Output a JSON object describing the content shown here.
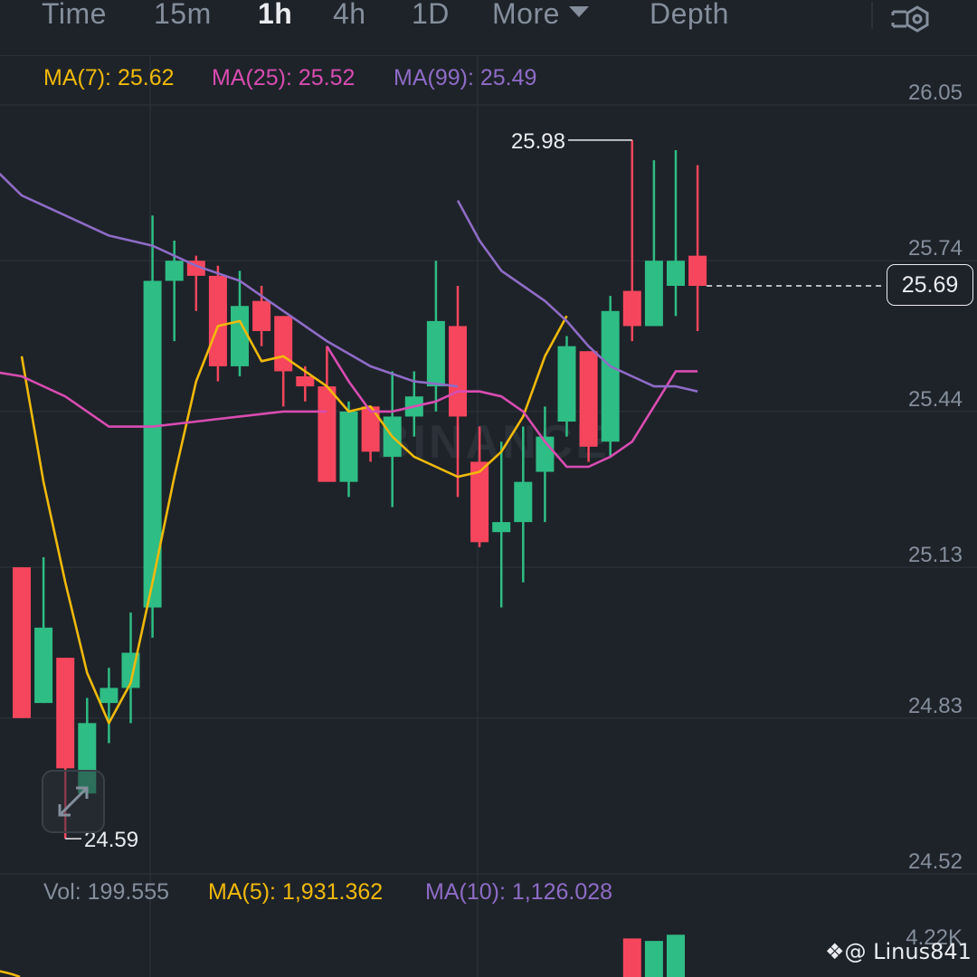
{
  "tabs": [
    {
      "label": "Time",
      "active": false
    },
    {
      "label": "15m",
      "active": false
    },
    {
      "label": "1h",
      "active": true
    },
    {
      "label": "4h",
      "active": false
    },
    {
      "label": "1D",
      "active": false
    },
    {
      "label": "More",
      "active": false
    },
    {
      "label": "Depth",
      "active": false
    }
  ],
  "indicators": {
    "ma7": "MA(7): 25.62",
    "ma25": "MA(25): 25.52",
    "ma99": "MA(99): 25.49"
  },
  "volume_indicators": {
    "vol": "Vol: 199.555",
    "ma5": "MA(5): 1,931.362",
    "ma10": "MA(10): 1,126.028"
  },
  "price_axis": [
    "26.05",
    "25.74",
    "25.44",
    "25.13",
    "24.83",
    "24.52"
  ],
  "volume_axis": "4.22K",
  "current_price": "25.69",
  "high_marker": "25.98",
  "low_marker": "24.59",
  "watermark": "BINANCE",
  "user_handle": "@ Linus841",
  "colors": {
    "background": "#1e2329",
    "up": "#2ebd85",
    "down": "#f6465d",
    "ma7": "#f0b90b",
    "ma25": "#d94cb1",
    "ma99": "#8e6cc6",
    "text_muted": "#848e9c",
    "grid": "#2b3139"
  },
  "chart_data": {
    "type": "candlestick",
    "candles": [
      {
        "o": 25.13,
        "h": 25.13,
        "l": 24.83,
        "c": 24.83
      },
      {
        "o": 24.86,
        "h": 25.15,
        "l": 24.86,
        "c": 25.01
      },
      {
        "o": 24.95,
        "h": 24.95,
        "l": 24.59,
        "c": 24.73
      },
      {
        "o": 24.68,
        "h": 24.87,
        "l": 24.67,
        "c": 24.82
      },
      {
        "o": 24.86,
        "h": 24.93,
        "l": 24.78,
        "c": 24.89
      },
      {
        "o": 24.89,
        "h": 25.04,
        "l": 24.82,
        "c": 24.96
      },
      {
        "o": 25.05,
        "h": 25.83,
        "l": 24.99,
        "c": 25.7
      },
      {
        "o": 25.7,
        "h": 25.78,
        "l": 25.58,
        "c": 25.74
      },
      {
        "o": 25.74,
        "h": 25.75,
        "l": 25.64,
        "c": 25.71
      },
      {
        "o": 25.71,
        "h": 25.73,
        "l": 25.5,
        "c": 25.53
      },
      {
        "o": 25.53,
        "h": 25.72,
        "l": 25.51,
        "c": 25.65
      },
      {
        "o": 25.66,
        "h": 25.69,
        "l": 25.57,
        "c": 25.6
      },
      {
        "o": 25.63,
        "h": 25.63,
        "l": 25.45,
        "c": 25.52
      },
      {
        "o": 25.51,
        "h": 25.53,
        "l": 25.46,
        "c": 25.49
      },
      {
        "o": 25.49,
        "h": 25.57,
        "l": 25.31,
        "c": 25.3
      },
      {
        "o": 25.3,
        "h": 25.46,
        "l": 25.27,
        "c": 25.44
      },
      {
        "o": 25.45,
        "h": 25.45,
        "l": 25.34,
        "c": 25.36
      },
      {
        "o": 25.35,
        "h": 25.52,
        "l": 25.25,
        "c": 25.43
      },
      {
        "o": 25.43,
        "h": 25.52,
        "l": 25.39,
        "c": 25.47
      },
      {
        "o": 25.49,
        "h": 25.74,
        "l": 25.44,
        "c": 25.62
      },
      {
        "o": 25.61,
        "h": 25.69,
        "l": 25.27,
        "c": 25.43
      },
      {
        "o": 25.34,
        "h": 25.41,
        "l": 25.17,
        "c": 25.18
      },
      {
        "o": 25.2,
        "h": 25.38,
        "l": 25.05,
        "c": 25.22
      },
      {
        "o": 25.22,
        "h": 25.41,
        "l": 25.1,
        "c": 25.3
      },
      {
        "o": 25.32,
        "h": 25.45,
        "l": 25.22,
        "c": 25.39
      },
      {
        "o": 25.42,
        "h": 25.59,
        "l": 25.39,
        "c": 25.57
      },
      {
        "o": 25.56,
        "h": 25.56,
        "l": 25.34,
        "c": 25.37
      },
      {
        "o": 25.38,
        "h": 25.67,
        "l": 25.35,
        "c": 25.64
      },
      {
        "o": 25.68,
        "h": 25.98,
        "l": 25.58,
        "c": 25.61
      },
      {
        "o": 25.61,
        "h": 25.94,
        "l": 25.61,
        "c": 25.74
      },
      {
        "o": 25.69,
        "h": 25.96,
        "l": 25.63,
        "c": 25.74
      },
      {
        "o": 25.75,
        "h": 25.93,
        "l": 25.6,
        "c": 25.69
      }
    ],
    "ma7": [
      25.55,
      25.3,
      25.1,
      24.92,
      24.82,
      24.9,
      25.1,
      25.31,
      25.5,
      25.61,
      25.62,
      25.54,
      25.55,
      25.52,
      25.49,
      25.44,
      25.45,
      25.39,
      25.35,
      25.33,
      25.31,
      25.32,
      25.36,
      25.43,
      25.55,
      25.63
    ],
    "ma25": [
      25.57,
      25.5,
      25.44,
      25.44,
      25.45,
      25.46,
      25.48,
      25.48,
      25.47,
      25.44,
      25.38,
      25.33,
      25.33,
      25.35,
      25.38,
      25.45,
      25.52,
      25.52
    ],
    "ma99": [
      25.86,
      25.78,
      25.72,
      25.69,
      25.66,
      25.62,
      25.57,
      25.53,
      25.51,
      25.49,
      25.49,
      25.48
    ],
    "volumes": [
      3.1,
      2.9,
      3.4
    ],
    "ylim": [
      24.52,
      26.05
    ]
  }
}
